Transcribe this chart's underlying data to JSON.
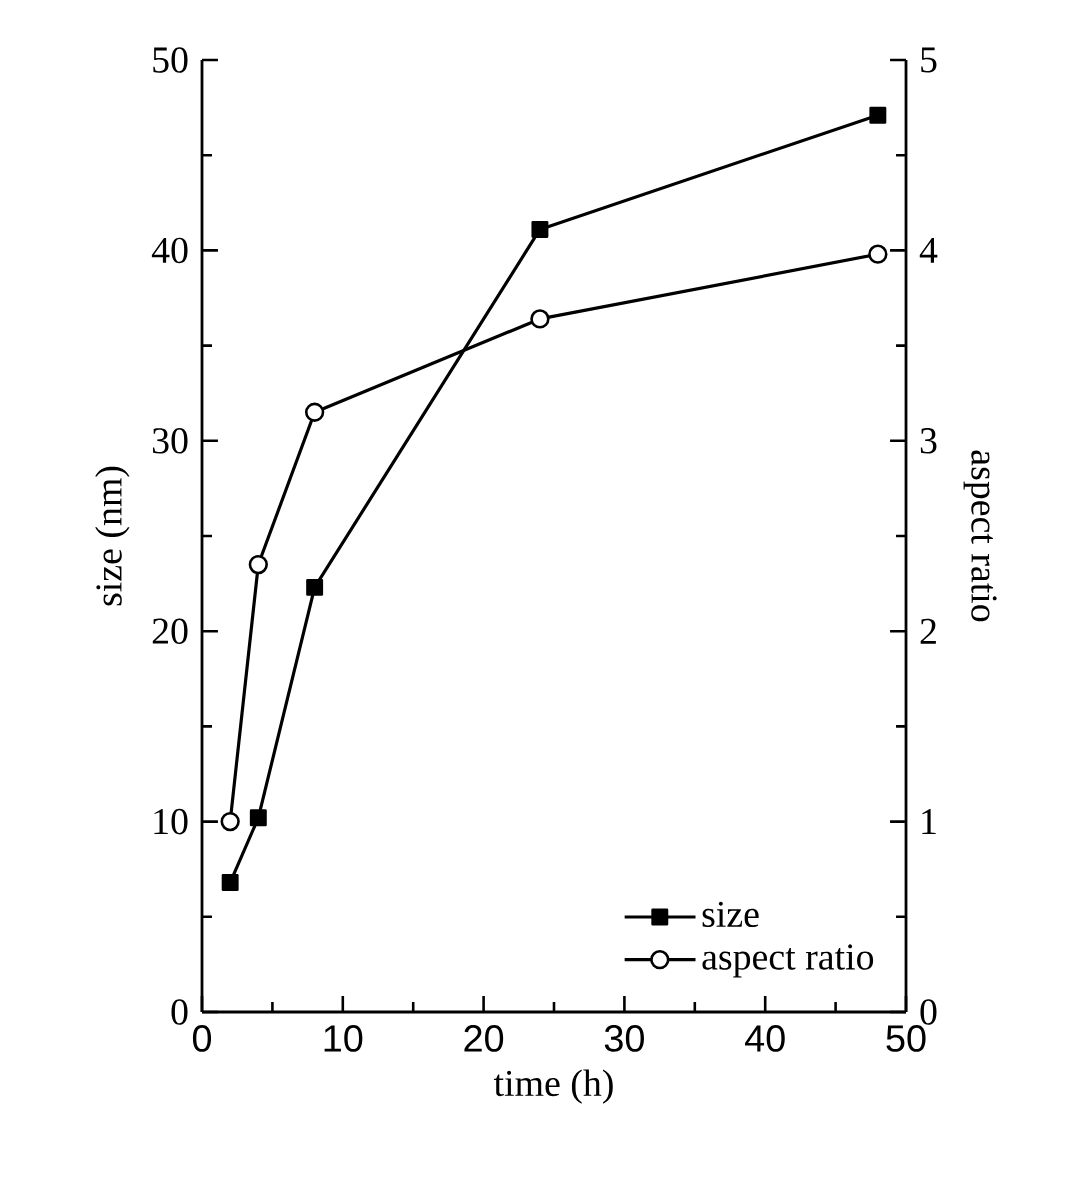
{
  "chart_data": {
    "type": "line",
    "xlabel": "time (h)",
    "ylabel": "size (nm)",
    "y2label": "aspect ratio",
    "xlim": [
      0,
      50
    ],
    "xticks": [
      0,
      10,
      20,
      30,
      40,
      50
    ],
    "ylim": [
      0,
      50
    ],
    "yticks": [
      0,
      10,
      20,
      30,
      40,
      50
    ],
    "y2lim": [
      0,
      5
    ],
    "y2ticks": [
      0,
      1,
      2,
      3,
      4,
      5
    ],
    "grid": false,
    "legend": "bottom right",
    "line_style": "solid",
    "series": [
      {
        "name": "size",
        "color": "#000000",
        "marker": "square",
        "x": [
          2,
          4,
          8,
          24,
          48
        ],
        "values": [
          6.8,
          10.2,
          22.3,
          41.1,
          47.1
        ]
      },
      {
        "name": "aspect ratio",
        "color": "#000000",
        "marker": "circle",
        "axis": "y2",
        "x": [
          2,
          4,
          8,
          24,
          48
        ],
        "values": [
          1.0,
          2.35,
          3.15,
          3.64,
          3.98
        ]
      }
    ]
  }
}
